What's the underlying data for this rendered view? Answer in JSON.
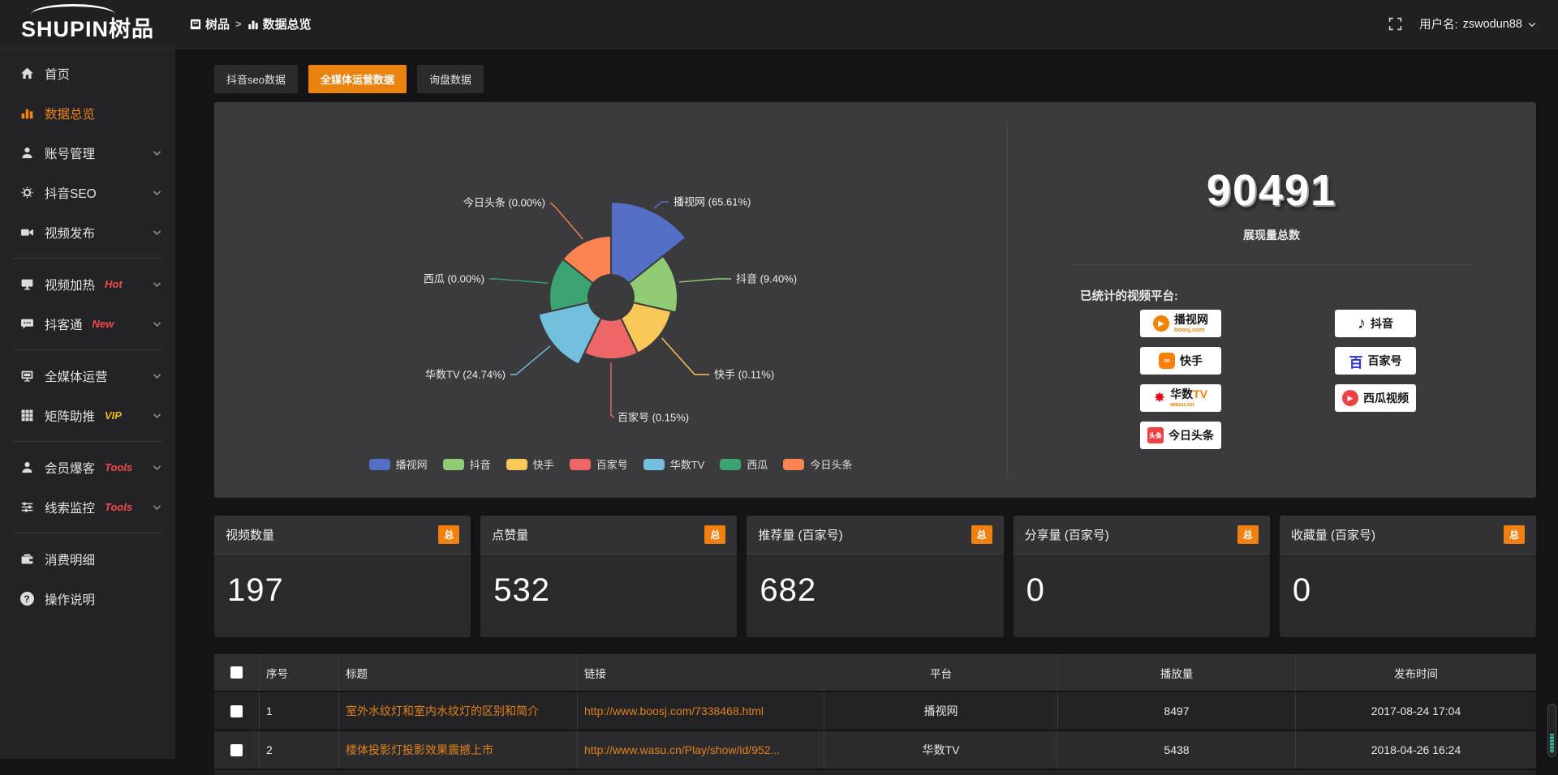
{
  "topbar": {
    "logo_main": "SHUPIN",
    "logo_suffix": "树品",
    "breadcrumb": {
      "root": "树品",
      "separator": ">",
      "current": "数据总览"
    },
    "user_prefix": "用户名:",
    "username": "zswodun88"
  },
  "sidebar": {
    "accent_color": "#f08418",
    "items": [
      {
        "label": "首页",
        "icon": "home-icon"
      },
      {
        "label": "数据总览",
        "icon": "bar-chart-icon",
        "active": true
      },
      {
        "label": "账号管理",
        "icon": "user-icon",
        "expandable": true
      },
      {
        "label": "抖音SEO",
        "icon": "gear-icon",
        "expandable": true
      },
      {
        "label": "视频发布",
        "icon": "video-camera-icon",
        "expandable": true
      },
      {
        "divider": true
      },
      {
        "label": "视频加热",
        "icon": "monitor-icon",
        "badge": "Hot",
        "badge_color": "#f34b4b",
        "expandable": true
      },
      {
        "label": "抖客通",
        "icon": "chat-bubble-icon",
        "badge": "New",
        "badge_color": "#f34b4b",
        "expandable": true
      },
      {
        "divider": true
      },
      {
        "label": "全媒体运营",
        "icon": "display-icon",
        "expandable": true
      },
      {
        "label": "矩阵助推",
        "icon": "grid-icon",
        "badge": "VIP",
        "badge_color": "#e9b81c",
        "expandable": true
      },
      {
        "divider": true
      },
      {
        "label": "会员爆客",
        "icon": "member-icon",
        "badge": "Tools",
        "badge_color": "#f34b4b",
        "expandable": true
      },
      {
        "label": "线索监控",
        "icon": "sliders-icon",
        "badge": "Tools",
        "badge_color": "#f34b4b",
        "expandable": true
      },
      {
        "divider": true
      },
      {
        "label": "消费明细",
        "icon": "wallet-icon"
      },
      {
        "label": "操作说明",
        "icon": "question-icon"
      }
    ]
  },
  "tabs": [
    {
      "label": "抖音seo数据",
      "active": false
    },
    {
      "label": "全媒体运营数据",
      "active": true
    },
    {
      "label": "询盘数据",
      "active": false
    }
  ],
  "chart_data": {
    "type": "pie",
    "style": "nightingale-rose",
    "label_format": "{name} ({percent}%)",
    "legend_position": "bottom",
    "labels": [
      "播视网",
      "抖音",
      "快手",
      "百家号",
      "华数TV",
      "西瓜",
      "今日头条"
    ],
    "values_percent": [
      65.61,
      9.4,
      0.11,
      0.15,
      24.74,
      0.0,
      0.0
    ],
    "colors": [
      "#5470c6",
      "#91cc75",
      "#fac858",
      "#ee6666",
      "#73c0de",
      "#3ba272",
      "#fc8452"
    ]
  },
  "summary": {
    "total_value": "90491",
    "total_caption": "展现量总数",
    "platforms_caption": "已统计的视频平台:",
    "left_badges": [
      {
        "name": "播视网",
        "sub": "boosj.com",
        "logo": "boosj-logo",
        "glyph": "▶"
      },
      {
        "name": "快手",
        "logo": "kuaishou-logo",
        "glyph": "∞"
      },
      {
        "name": "华数",
        "accent": "TV",
        "sub": "wasu.cn",
        "logo": "wasu-logo",
        "glyph": "✸"
      },
      {
        "name": "今日头条",
        "logo": "toutiao-logo",
        "glyph": "头条"
      }
    ],
    "right_badges": [
      {
        "name": "抖音",
        "logo": "douyin-logo",
        "glyph": "♪"
      },
      {
        "name": "百家号",
        "logo": "baijiahao-logo",
        "glyph": "百"
      },
      {
        "name": "西瓜视频",
        "logo": "xigua-logo",
        "glyph": "▶"
      }
    ]
  },
  "stat_cards": [
    {
      "title": "视频数量",
      "badge": "总",
      "value": "197"
    },
    {
      "title": "点赞量",
      "badge": "总",
      "value": "532"
    },
    {
      "title": "推荐量 (百家号)",
      "badge": "总",
      "value": "682"
    },
    {
      "title": "分享量 (百家号)",
      "badge": "总",
      "value": "0"
    },
    {
      "title": "收藏量 (百家号)",
      "badge": "总",
      "value": "0"
    }
  ],
  "table": {
    "headers": [
      "序号",
      "标题",
      "链接",
      "平台",
      "播放量",
      "发布时间"
    ],
    "rows": [
      {
        "seq": "1",
        "title": "室外水纹灯和室内水纹灯的区别和简介",
        "link": "http://www.boosj.com/7338468.html",
        "platform": "播视网",
        "plays": "8497",
        "published": "2017-08-24 17:04"
      },
      {
        "seq": "2",
        "title": "楼体投影灯投影效果震撼上市",
        "link": "http://www.wasu.cn/Play/show/id/952...",
        "platform": "华数TV",
        "plays": "5438",
        "published": "2018-04-26 16:24"
      }
    ]
  },
  "icons": {
    "question_glyph": "?"
  }
}
